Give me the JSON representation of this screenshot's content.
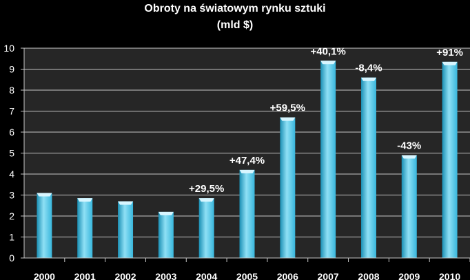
{
  "chart_data": {
    "type": "bar",
    "title": "Obroty na światowym rynku sztuki",
    "subtitle": "(mld $)",
    "categories": [
      "2000",
      "2001",
      "2002",
      "2003",
      "2004",
      "2005",
      "2006",
      "2007",
      "2008",
      "2009",
      "2010"
    ],
    "values": [
      3.1,
      2.85,
      2.7,
      2.2,
      2.85,
      4.2,
      6.7,
      9.4,
      8.6,
      4.9,
      9.35
    ],
    "annotations": [
      "",
      "",
      "",
      "",
      "+29,5%",
      "+47,4%",
      "+59,5%",
      "+40,1%",
      "-8,4%",
      "-43%",
      "+91%"
    ],
    "yticks": [
      "0",
      "1",
      "2",
      "3",
      "4",
      "5",
      "6",
      "7",
      "8",
      "9",
      "10"
    ],
    "ylim": [
      0,
      10
    ],
    "xlabel": "",
    "ylabel": "",
    "grid": true,
    "legend": "none",
    "colors": {
      "background": "#000000",
      "plot_background": "#262626",
      "grid": "#c8c8c8",
      "bar": "#38b6dc",
      "bar_light": "#8fe0f5",
      "bar_dark": "#1a8fb4",
      "bar_cap": "#d8f6ff",
      "text": "#ffffff"
    }
  }
}
